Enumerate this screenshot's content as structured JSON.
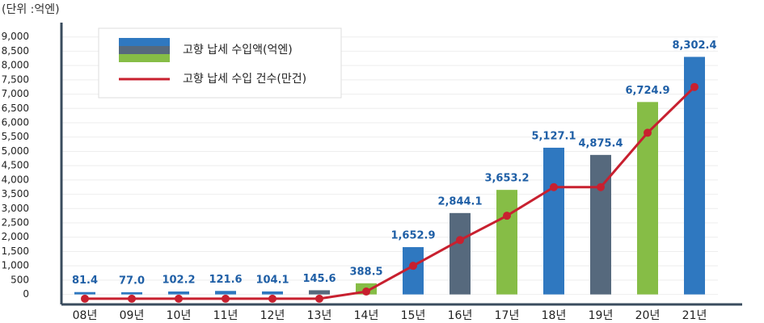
{
  "chart_data": {
    "type": "bar",
    "unit_label": "(단위 :억엔)",
    "categories": [
      "08년",
      "09년",
      "10년",
      "11년",
      "12년",
      "13년",
      "14년",
      "15년",
      "16년",
      "17년",
      "18년",
      "19년",
      "20년",
      "21년"
    ],
    "series": [
      {
        "name": "고향 납세 수입액(억엔)",
        "type": "bar",
        "colors": [
          "#2f78c0",
          "#2f78c0",
          "#2f78c0",
          "#2f78c0",
          "#2f78c0",
          "#56697d",
          "#86bd46",
          "#2f78c0",
          "#56697d",
          "#86bd46",
          "#2f78c0",
          "#56697d",
          "#86bd46",
          "#2f78c0"
        ],
        "values": [
          81.4,
          77.0,
          102.2,
          121.6,
          104.1,
          145.6,
          388.5,
          1652.9,
          2844.1,
          3653.2,
          5127.1,
          4875.4,
          6724.9,
          8302.4
        ],
        "value_labels": [
          "81.4",
          "77.0",
          "102.2",
          "121.6",
          "104.1",
          "145.6",
          "388.5",
          "1,652.9",
          "2,844.1",
          "3,653.2",
          "5,127.1",
          "4,875.4",
          "6,724.9",
          "8,302.4"
        ]
      },
      {
        "name": "고향 납세 수입 건수(만건)",
        "type": "line",
        "color": "#c8202f",
        "values": [
          -150,
          -150,
          -150,
          -150,
          -150,
          -150,
          100,
          1000,
          1900,
          2750,
          3750,
          3750,
          5650,
          7250
        ]
      }
    ],
    "ylim": [
      -350,
      9500
    ],
    "yticks": [
      0,
      500,
      {
        "value": 1000,
        "label": "1,000"
      },
      {
        "value": 1500,
        "label": "1,500"
      },
      {
        "value": 2000,
        "label": "2,000"
      },
      {
        "value": 2500,
        "label": "2,500"
      },
      {
        "value": 3000,
        "label": "3,000"
      },
      {
        "value": 3500,
        "label": "3,500"
      },
      {
        "value": 4000,
        "label": "4,000"
      },
      {
        "value": 4500,
        "label": "4,500"
      },
      {
        "value": 5000,
        "label": "5,000"
      },
      {
        "value": 5500,
        "label": "5,500"
      },
      {
        "value": 6000,
        "label": "6,000"
      },
      {
        "value": 6500,
        "label": "6,500"
      },
      {
        "value": 7000,
        "label": "7,000"
      },
      {
        "value": 7500,
        "label": "7,500"
      },
      {
        "value": 8000,
        "label": "8,000"
      },
      {
        "value": 8500,
        "label": "8,500"
      },
      {
        "value": 9000,
        "label": "9,000"
      }
    ],
    "grid": true
  }
}
